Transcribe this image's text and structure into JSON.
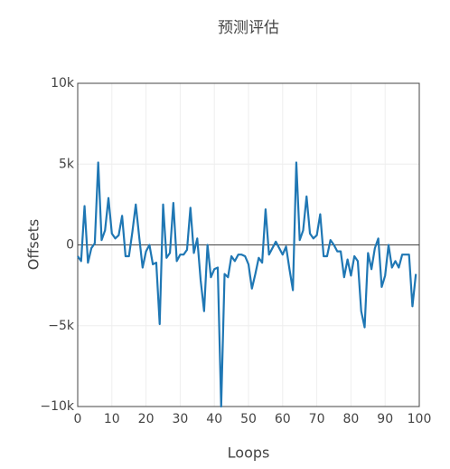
{
  "chart_data": {
    "type": "line",
    "title": "预测评估",
    "x_label": "Loops",
    "y_label": "Offsets",
    "x": [
      0,
      1,
      2,
      3,
      4,
      5,
      6,
      7,
      8,
      9,
      10,
      11,
      12,
      13,
      14,
      15,
      16,
      17,
      18,
      19,
      20,
      21,
      22,
      23,
      24,
      25,
      26,
      27,
      28,
      29,
      30,
      31,
      32,
      33,
      34,
      35,
      36,
      37,
      38,
      39,
      40,
      41,
      42,
      43,
      44,
      45,
      46,
      47,
      48,
      49,
      50,
      51,
      52,
      53,
      54,
      55,
      56,
      57,
      58,
      59,
      60,
      61,
      62,
      63,
      64,
      65,
      66,
      67,
      68,
      69,
      70,
      71,
      72,
      73,
      74,
      75,
      76,
      77,
      78,
      79,
      80,
      81,
      82,
      83,
      84,
      85,
      86,
      87,
      88,
      89,
      90,
      91,
      92,
      93,
      94,
      95,
      96,
      97,
      98,
      99
    ],
    "values": [
      -700,
      -1000,
      2400,
      -1100,
      -200,
      100,
      5100,
      300,
      900,
      2900,
      700,
      400,
      600,
      1800,
      -700,
      -700,
      800,
      2500,
      500,
      -1400,
      -400,
      0,
      -1200,
      -1100,
      -4900,
      2500,
      -800,
      -500,
      2600,
      -1000,
      -600,
      -600,
      -300,
      2300,
      -500,
      400,
      -2200,
      -4100,
      0,
      -2000,
      -1500,
      -1400,
      -10000,
      -1800,
      -2000,
      -700,
      -1000,
      -600,
      -600,
      -700,
      -1200,
      -2700,
      -1800,
      -800,
      -1100,
      2200,
      -600,
      -200,
      200,
      -200,
      -600,
      -100,
      -1500,
      -2800,
      5100,
      300,
      900,
      3000,
      700,
      400,
      600,
      1900,
      -700,
      -700,
      300,
      0,
      -400,
      -400,
      -2000,
      -900,
      -1900,
      -700,
      -1000,
      -4100,
      -5100,
      -500,
      -1500,
      -200,
      400,
      -2600,
      -1900,
      0,
      -1400,
      -1000,
      -1400,
      -600,
      -600,
      -600,
      -3800,
      -1800
    ],
    "color": "#1f77b4",
    "xlim": [
      0,
      100
    ],
    "xticks": [
      0,
      10,
      20,
      30,
      40,
      50,
      60,
      70,
      80,
      90,
      100
    ],
    "ylim": [
      -10000,
      10000
    ],
    "yticks": [
      {
        "value": -10000,
        "label": "−10k"
      },
      {
        "value": -5000,
        "label": "−5k"
      },
      0,
      {
        "value": 5000,
        "label": "5k"
      },
      {
        "value": 10000,
        "label": "10k"
      }
    ],
    "grid": true
  }
}
